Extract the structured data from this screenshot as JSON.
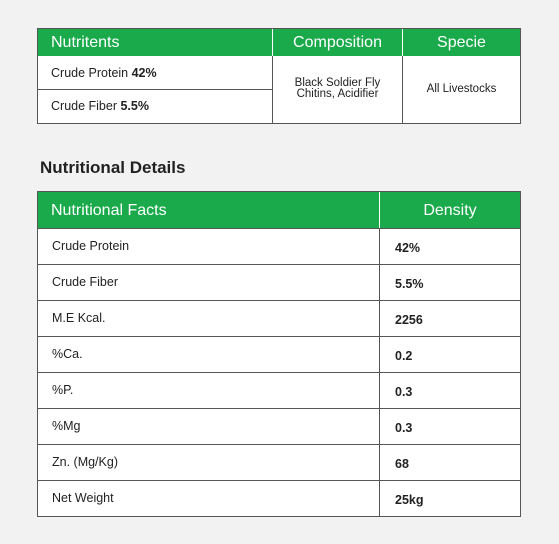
{
  "composition_table": {
    "headers": [
      "Nutritents",
      "Composition",
      "Specie"
    ],
    "rows": [
      {
        "label": "Crude Protein",
        "value": "42%"
      },
      {
        "label": "Crude Fiber",
        "value": "5.5%"
      }
    ],
    "composition_line1": "Black Soldier Fly",
    "composition_line2": "Chitins, Acidifier",
    "specie": "All Livestocks"
  },
  "section_title": "Nutritional Details",
  "details_table": {
    "headers": [
      "Nutritional Facts",
      "Density"
    ],
    "rows": [
      {
        "fact": "Crude Protein",
        "density": "42%"
      },
      {
        "fact": "Crude Fiber",
        "density": "5.5%"
      },
      {
        "fact": "M.E Kcal.",
        "density": "2256"
      },
      {
        "fact": "%Ca.",
        "density": "0.2"
      },
      {
        "fact": "%P.",
        "density": "0.3"
      },
      {
        "fact": "%Mg",
        "density": "0.3"
      },
      {
        "fact": "Zn. (Mg/Kg)",
        "density": "68"
      },
      {
        "fact": "Net Weight",
        "density": "25kg"
      }
    ]
  },
  "colors": {
    "header_bg": "#1aaa4b",
    "header_text": "#ffffff",
    "border": "#555555"
  }
}
